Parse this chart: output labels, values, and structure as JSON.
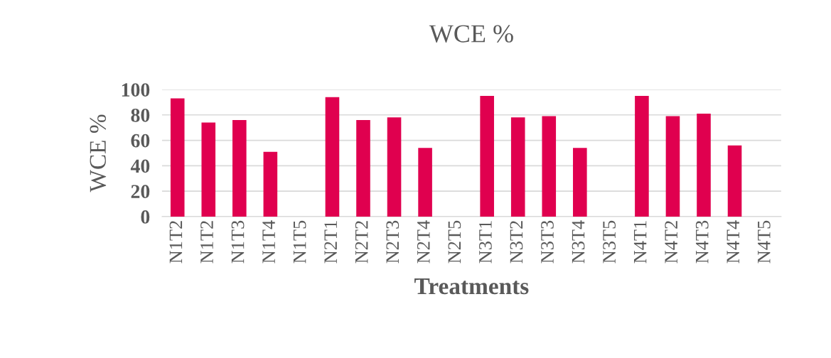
{
  "chart_data": {
    "type": "bar",
    "title": "WCE %",
    "xlabel": "Treatments",
    "ylabel": "WCE %",
    "categories": [
      "N1T2",
      "N1T2",
      "N1T3",
      "N1T4",
      "N1T5",
      "N2T1",
      "N2T2",
      "N2T3",
      "N2T4",
      "N2T5",
      "N3T1",
      "N3T2",
      "N3T3",
      "N3T4",
      "N3T5",
      "N4T1",
      "N4T2",
      "N4T3",
      "N4T4",
      "N4T5"
    ],
    "values": [
      93,
      74,
      76,
      51,
      0,
      94,
      76,
      78,
      54,
      0,
      95,
      78,
      79,
      54,
      0,
      95,
      79,
      81,
      56,
      0
    ],
    "color": "#e0004f",
    "ylim": [
      0,
      100
    ],
    "yticks": [
      0,
      20,
      40,
      60,
      80,
      100
    ],
    "grid": "y"
  }
}
